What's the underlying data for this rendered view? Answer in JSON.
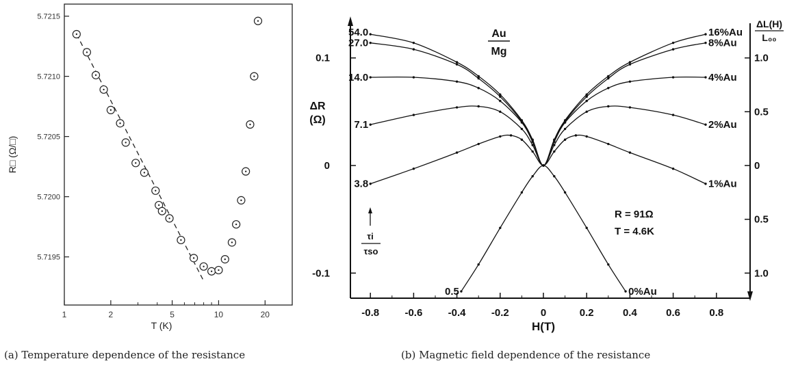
{
  "figure_a": {
    "caption": "(a) Temperature dependence of the resistance",
    "xlabel": "T (K)",
    "ylabel": "R□ (Ω/□)",
    "x_ticks": [
      1,
      2,
      5,
      10,
      20
    ],
    "y_ticks": [
      "5.7195",
      "5.7200",
      "5.7205",
      "5.7210",
      "5.7215"
    ]
  },
  "figure_b": {
    "caption": "(b) Magnetic field dependence of the resistance",
    "xlabel": "H(T)",
    "ylabel_left_top": "ΔR",
    "ylabel_left_unit": "(Ω)",
    "ylabel_right_num": "ΔL(H)",
    "ylabel_right_den": "L₀₀",
    "ratio_num": "τi",
    "ratio_den": "τso",
    "system_num": "Au",
    "system_den": "Mg",
    "params": [
      "R = 91Ω",
      "T = 4.6K"
    ],
    "x_ticks": [
      "-0.8",
      "-0.6",
      "-0.4",
      "-0.2",
      "0",
      "0.2",
      "0.4",
      "0.6",
      "0.8"
    ],
    "y_left_ticks": [
      "0.1",
      "0",
      "-0.1"
    ],
    "y_right_upper_ticks": [
      "1.0",
      "0.5",
      "0"
    ],
    "y_right_lower_ticks": [
      "0.5",
      "1.0"
    ],
    "ratio_labels": [
      "54.0",
      "27.0",
      "14.0",
      "7.1",
      "3.8",
      "0.5"
    ],
    "au_labels": [
      "16%Au",
      "8%Au",
      "4%Au",
      "2%Au",
      "1%Au",
      "0%Au"
    ]
  },
  "chart_data": [
    {
      "type": "scatter",
      "xscale": "log",
      "xlabel": "T (K)",
      "ylabel": "R□ (Ω/□)",
      "xlim": [
        1,
        30
      ],
      "ylim": [
        5.7191,
        5.7216
      ],
      "series": [
        {
          "x": [
            1.2,
            1.4,
            1.6,
            1.8,
            2.0,
            2.3,
            2.5,
            2.9,
            3.3,
            3.9,
            4.1,
            4.3,
            4.8,
            5.7,
            6.9,
            8.0,
            9.0,
            10.0,
            11.0,
            12.2,
            13.0,
            14.0,
            15.0,
            16.0,
            17.0,
            18.0
          ],
          "y": [
            5.72135,
            5.7212,
            5.72101,
            5.72089,
            5.72072,
            5.72061,
            5.72045,
            5.72028,
            5.7202,
            5.72005,
            5.71993,
            5.71988,
            5.71982,
            5.71964,
            5.71949,
            5.71942,
            5.71938,
            5.71939,
            5.71948,
            5.71962,
            5.71977,
            5.71997,
            5.72021,
            5.7206,
            5.721,
            5.72146
          ]
        }
      ],
      "fit_line": {
        "x": [
          1.2,
          8.0
        ],
        "y": [
          5.72135,
          5.7193
        ]
      }
    },
    {
      "type": "line",
      "xlabel": "H(T)",
      "ylabel": "ΔR (Ω)",
      "xlim": [
        -0.9,
        1.0
      ],
      "ylim": [
        -0.12,
        0.135
      ],
      "curves": [
        {
          "left": "54.0",
          "right": "16%Au",
          "x": [
            -0.8,
            -0.6,
            -0.4,
            -0.3,
            -0.2,
            -0.1,
            -0.05,
            0,
            0.05,
            0.1,
            0.2,
            0.3,
            0.4,
            0.6,
            0.75
          ],
          "y": [
            0.122,
            0.114,
            0.096,
            0.083,
            0.066,
            0.042,
            0.024,
            0,
            0.024,
            0.042,
            0.066,
            0.083,
            0.096,
            0.114,
            0.122
          ]
        },
        {
          "left": "27.0",
          "right": "8%Au",
          "x": [
            -0.8,
            -0.6,
            -0.4,
            -0.3,
            -0.2,
            -0.1,
            -0.05,
            0,
            0.05,
            0.1,
            0.2,
            0.3,
            0.4,
            0.6,
            0.75
          ],
          "y": [
            0.114,
            0.108,
            0.094,
            0.081,
            0.064,
            0.041,
            0.023,
            0,
            0.023,
            0.041,
            0.064,
            0.081,
            0.094,
            0.108,
            0.114
          ]
        },
        {
          "left": "14.0",
          "right": "4%Au",
          "x": [
            -0.8,
            -0.6,
            -0.4,
            -0.3,
            -0.2,
            -0.1,
            -0.05,
            0,
            0.05,
            0.1,
            0.2,
            0.3,
            0.4,
            0.6,
            0.75
          ],
          "y": [
            0.082,
            0.082,
            0.078,
            0.072,
            0.06,
            0.04,
            0.022,
            0,
            0.022,
            0.04,
            0.06,
            0.072,
            0.078,
            0.082,
            0.082
          ]
        },
        {
          "left": "7.1",
          "right": "2%Au",
          "x": [
            -0.8,
            -0.6,
            -0.4,
            -0.3,
            -0.2,
            -0.1,
            -0.05,
            0,
            0.05,
            0.1,
            0.2,
            0.3,
            0.4,
            0.6,
            0.75
          ],
          "y": [
            0.038,
            0.047,
            0.054,
            0.055,
            0.05,
            0.034,
            0.019,
            0,
            0.019,
            0.034,
            0.05,
            0.055,
            0.054,
            0.047,
            0.038
          ]
        },
        {
          "left": "3.8",
          "right": "1%Au",
          "x": [
            -0.8,
            -0.6,
            -0.4,
            -0.3,
            -0.2,
            -0.15,
            -0.1,
            -0.05,
            0,
            0.05,
            0.1,
            0.15,
            0.2,
            0.3,
            0.4,
            0.6,
            0.75
          ],
          "y": [
            -0.017,
            -0.003,
            0.012,
            0.02,
            0.027,
            0.028,
            0.024,
            0.013,
            0,
            0.013,
            0.024,
            0.028,
            0.027,
            0.02,
            0.012,
            -0.003,
            -0.017
          ]
        },
        {
          "left": "0.5",
          "right": "0%Au",
          "x": [
            -0.38,
            -0.3,
            -0.2,
            -0.1,
            -0.05,
            0,
            0.05,
            0.1,
            0.2,
            0.3,
            0.38
          ],
          "y": [
            -0.117,
            -0.092,
            -0.058,
            -0.025,
            -0.01,
            0,
            -0.01,
            -0.025,
            -0.058,
            -0.092,
            -0.117
          ]
        }
      ]
    }
  ]
}
